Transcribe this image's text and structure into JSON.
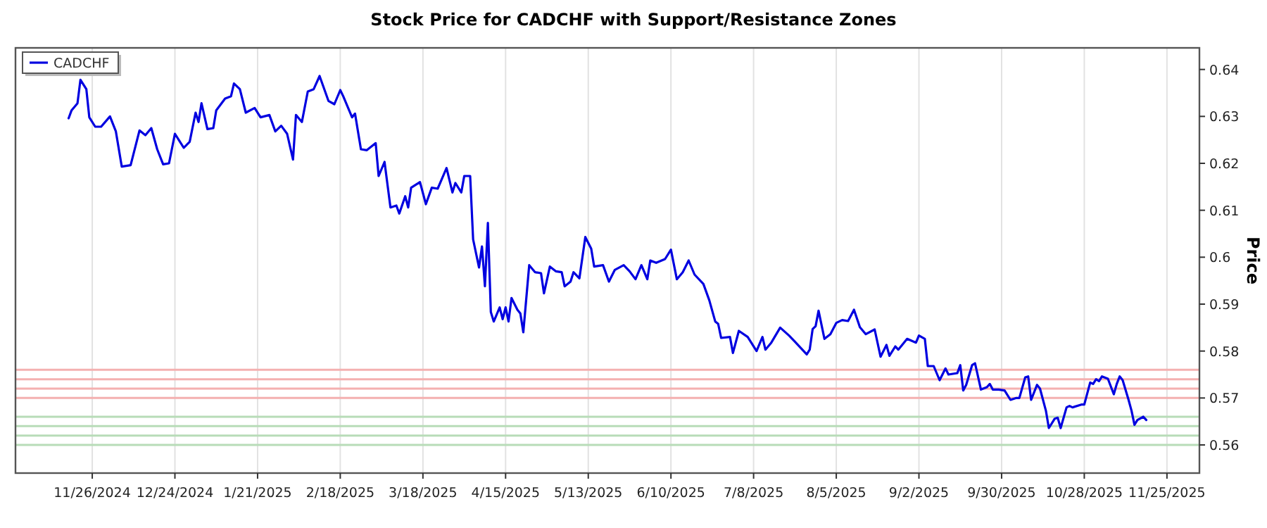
{
  "chart_data": {
    "type": "line",
    "title": "Stock Price for CADCHF with Support/Resistance Zones",
    "ylabel": "Price",
    "x": [
      "2024-11-18",
      "2024-11-19",
      "2024-11-21",
      "2024-11-22",
      "2024-11-24",
      "2024-11-25",
      "2024-11-27",
      "2024-11-29",
      "2024-12-02",
      "2024-12-04",
      "2024-12-06",
      "2024-12-09",
      "2024-12-12",
      "2024-12-14",
      "2024-12-16",
      "2024-12-18",
      "2024-12-20",
      "2024-12-22",
      "2024-12-24",
      "2024-12-27",
      "2024-12-29",
      "2024-12-31",
      "2025-01-01",
      "2025-01-02",
      "2025-01-04",
      "2025-01-06",
      "2025-01-07",
      "2025-01-10",
      "2025-01-12",
      "2025-01-13",
      "2025-01-15",
      "2025-01-17",
      "2025-01-20",
      "2025-01-22",
      "2025-01-25",
      "2025-01-27",
      "2025-01-29",
      "2025-01-31",
      "2025-02-02",
      "2025-02-03",
      "2025-02-05",
      "2025-02-07",
      "2025-02-09",
      "2025-02-11",
      "2025-02-14",
      "2025-02-16",
      "2025-02-18",
      "2025-02-19",
      "2025-02-22",
      "2025-02-23",
      "2025-02-25",
      "2025-02-27",
      "2025-03-02",
      "2025-03-03",
      "2025-03-05",
      "2025-03-07",
      "2025-03-09",
      "2025-03-10",
      "2025-03-12",
      "2025-03-13",
      "2025-03-14",
      "2025-03-17",
      "2025-03-19",
      "2025-03-21",
      "2025-03-23",
      "2025-03-26",
      "2025-03-28",
      "2025-03-29",
      "2025-03-31",
      "2025-04-01",
      "2025-04-03",
      "2025-04-04",
      "2025-04-06",
      "2025-04-07",
      "2025-04-08",
      "2025-04-09",
      "2025-04-10",
      "2025-04-11",
      "2025-04-13",
      "2025-04-14",
      "2025-04-15",
      "2025-04-16",
      "2025-04-17",
      "2025-04-19",
      "2025-04-20",
      "2025-04-21",
      "2025-04-23",
      "2025-04-25",
      "2025-04-27",
      "2025-04-28",
      "2025-04-30",
      "2025-05-02",
      "2025-05-04",
      "2025-05-05",
      "2025-05-07",
      "2025-05-08",
      "2025-05-10",
      "2025-05-12",
      "2025-05-14",
      "2025-05-15",
      "2025-05-18",
      "2025-05-20",
      "2025-05-22",
      "2025-05-25",
      "2025-05-27",
      "2025-05-29",
      "2025-05-31",
      "2025-06-02",
      "2025-06-03",
      "2025-06-05",
      "2025-06-08",
      "2025-06-10",
      "2025-06-12",
      "2025-06-14",
      "2025-06-16",
      "2025-06-18",
      "2025-06-21",
      "2025-06-23",
      "2025-06-25",
      "2025-06-26",
      "2025-06-27",
      "2025-06-30",
      "2025-07-01",
      "2025-07-03",
      "2025-07-06",
      "2025-07-09",
      "2025-07-11",
      "2025-07-12",
      "2025-07-14",
      "2025-07-17",
      "2025-07-20",
      "2025-07-22",
      "2025-07-26",
      "2025-07-27",
      "2025-07-28",
      "2025-07-29",
      "2025-07-30",
      "2025-08-01",
      "2025-08-03",
      "2025-08-05",
      "2025-08-07",
      "2025-08-09",
      "2025-08-11",
      "2025-08-13",
      "2025-08-15",
      "2025-08-18",
      "2025-08-20",
      "2025-08-22",
      "2025-08-23",
      "2025-08-25",
      "2025-08-26",
      "2025-08-29",
      "2025-09-01",
      "2025-09-02",
      "2025-09-04",
      "2025-09-05",
      "2025-09-07",
      "2025-09-09",
      "2025-09-11",
      "2025-09-12",
      "2025-09-15",
      "2025-09-16",
      "2025-09-17",
      "2025-09-18",
      "2025-09-20",
      "2025-09-21",
      "2025-09-23",
      "2025-09-25",
      "2025-09-26",
      "2025-09-27",
      "2025-09-29",
      "2025-10-01",
      "2025-10-03",
      "2025-10-05",
      "2025-10-06",
      "2025-10-08",
      "2025-10-09",
      "2025-10-10",
      "2025-10-12",
      "2025-10-13",
      "2025-10-15",
      "2025-10-16",
      "2025-10-18",
      "2025-10-19",
      "2025-10-20",
      "2025-10-22",
      "2025-10-23",
      "2025-10-24",
      "2025-10-27",
      "2025-10-28",
      "2025-10-30",
      "2025-10-31",
      "2025-11-01",
      "2025-11-02",
      "2025-11-03",
      "2025-11-05",
      "2025-11-07",
      "2025-11-08",
      "2025-11-09",
      "2025-11-10",
      "2025-11-12",
      "2025-11-13",
      "2025-11-14",
      "2025-11-15",
      "2025-11-17",
      "2025-11-18"
    ],
    "series": [
      {
        "name": "CADCHF",
        "color": "#0000e0",
        "values": [
          0.6296,
          0.6313,
          0.6328,
          0.6378,
          0.6358,
          0.6298,
          0.6278,
          0.6278,
          0.63,
          0.6268,
          0.6193,
          0.6196,
          0.627,
          0.626,
          0.6275,
          0.623,
          0.6198,
          0.62,
          0.6263,
          0.6233,
          0.6246,
          0.6308,
          0.6288,
          0.6328,
          0.6273,
          0.6275,
          0.6313,
          0.6338,
          0.6343,
          0.637,
          0.6358,
          0.6308,
          0.6318,
          0.6298,
          0.6303,
          0.6268,
          0.628,
          0.6263,
          0.6208,
          0.6303,
          0.6288,
          0.6353,
          0.6358,
          0.6386,
          0.6333,
          0.6326,
          0.6356,
          0.6343,
          0.6298,
          0.6306,
          0.623,
          0.6228,
          0.6243,
          0.6173,
          0.6203,
          0.6106,
          0.611,
          0.6093,
          0.613,
          0.6106,
          0.6148,
          0.616,
          0.6113,
          0.6148,
          0.6146,
          0.619,
          0.6138,
          0.6158,
          0.6138,
          0.6173,
          0.6173,
          0.6038,
          0.5978,
          0.6023,
          0.5938,
          0.6073,
          0.5883,
          0.5863,
          0.5893,
          0.5868,
          0.5893,
          0.5863,
          0.5913,
          0.5888,
          0.588,
          0.584,
          0.5983,
          0.5968,
          0.5966,
          0.5923,
          0.598,
          0.597,
          0.5968,
          0.5938,
          0.5948,
          0.5968,
          0.5955,
          0.6043,
          0.6018,
          0.598,
          0.5983,
          0.5948,
          0.5973,
          0.5983,
          0.597,
          0.5953,
          0.5983,
          0.5953,
          0.5993,
          0.5988,
          0.5996,
          0.6016,
          0.5953,
          0.5968,
          0.5993,
          0.5963,
          0.5943,
          0.5908,
          0.5863,
          0.5858,
          0.5828,
          0.583,
          0.5796,
          0.5843,
          0.583,
          0.58,
          0.583,
          0.5803,
          0.5818,
          0.585,
          0.5833,
          0.582,
          0.5793,
          0.5803,
          0.5847,
          0.5853,
          0.5886,
          0.5826,
          0.5836,
          0.586,
          0.5866,
          0.5864,
          0.5888,
          0.5851,
          0.5836,
          0.5846,
          0.5788,
          0.5813,
          0.579,
          0.581,
          0.5803,
          0.5826,
          0.5818,
          0.5833,
          0.5826,
          0.5768,
          0.5768,
          0.5738,
          0.5763,
          0.575,
          0.5753,
          0.577,
          0.5716,
          0.5728,
          0.577,
          0.5774,
          0.5718,
          0.5723,
          0.573,
          0.5718,
          0.5718,
          0.5716,
          0.5696,
          0.57,
          0.57,
          0.5744,
          0.5746,
          0.5696,
          0.5728,
          0.572,
          0.5673,
          0.5636,
          0.5656,
          0.5658,
          0.5636,
          0.568,
          0.5683,
          0.568,
          0.5686,
          0.5686,
          0.5733,
          0.573,
          0.574,
          0.5736,
          0.5746,
          0.5741,
          0.5708,
          0.573,
          0.5746,
          0.5738,
          0.5696,
          0.5673,
          0.5643,
          0.5653,
          0.566,
          0.5653
        ]
      }
    ],
    "xlim": [
      "2024-10-31",
      "2025-12-06"
    ],
    "xticks": [
      {
        "value": "2024-11-26",
        "label": "11/26/2024"
      },
      {
        "value": "2024-12-24",
        "label": "12/24/2024"
      },
      {
        "value": "2025-01-21",
        "label": "1/21/2025"
      },
      {
        "value": "2025-02-18",
        "label": "2/18/2025"
      },
      {
        "value": "2025-03-18",
        "label": "3/18/2025"
      },
      {
        "value": "2025-04-15",
        "label": "4/15/2025"
      },
      {
        "value": "2025-05-13",
        "label": "5/13/2025"
      },
      {
        "value": "2025-06-10",
        "label": "6/10/2025"
      },
      {
        "value": "2025-07-08",
        "label": "7/8/2025"
      },
      {
        "value": "2025-08-05",
        "label": "8/5/2025"
      },
      {
        "value": "2025-09-02",
        "label": "9/2/2025"
      },
      {
        "value": "2025-09-30",
        "label": "9/30/2025"
      },
      {
        "value": "2025-10-28",
        "label": "10/28/2025"
      },
      {
        "value": "2025-11-25",
        "label": "11/25/2025"
      }
    ],
    "ylim": [
      0.554,
      0.6446
    ],
    "yticks": [
      0.56,
      0.57,
      0.58,
      0.59,
      0.6,
      0.61,
      0.62,
      0.63,
      0.64
    ],
    "ref_lines": [
      {
        "axis": "y",
        "value": 0.576,
        "color": "#f4b0b0"
      },
      {
        "axis": "y",
        "value": 0.574,
        "color": "#f4b0b0"
      },
      {
        "axis": "y",
        "value": 0.572,
        "color": "#f4b0b0"
      },
      {
        "axis": "y",
        "value": 0.57,
        "color": "#f4b0b0"
      },
      {
        "axis": "y",
        "value": 0.566,
        "color": "#b8dcb8"
      },
      {
        "axis": "y",
        "value": 0.564,
        "color": "#b8dcb8"
      },
      {
        "axis": "y",
        "value": 0.562,
        "color": "#b8dcb8"
      },
      {
        "axis": "y",
        "value": 0.56,
        "color": "#b8dcb8"
      }
    ],
    "grid": "x",
    "legend": "top left",
    "marker": "none",
    "line_style": "solid"
  }
}
